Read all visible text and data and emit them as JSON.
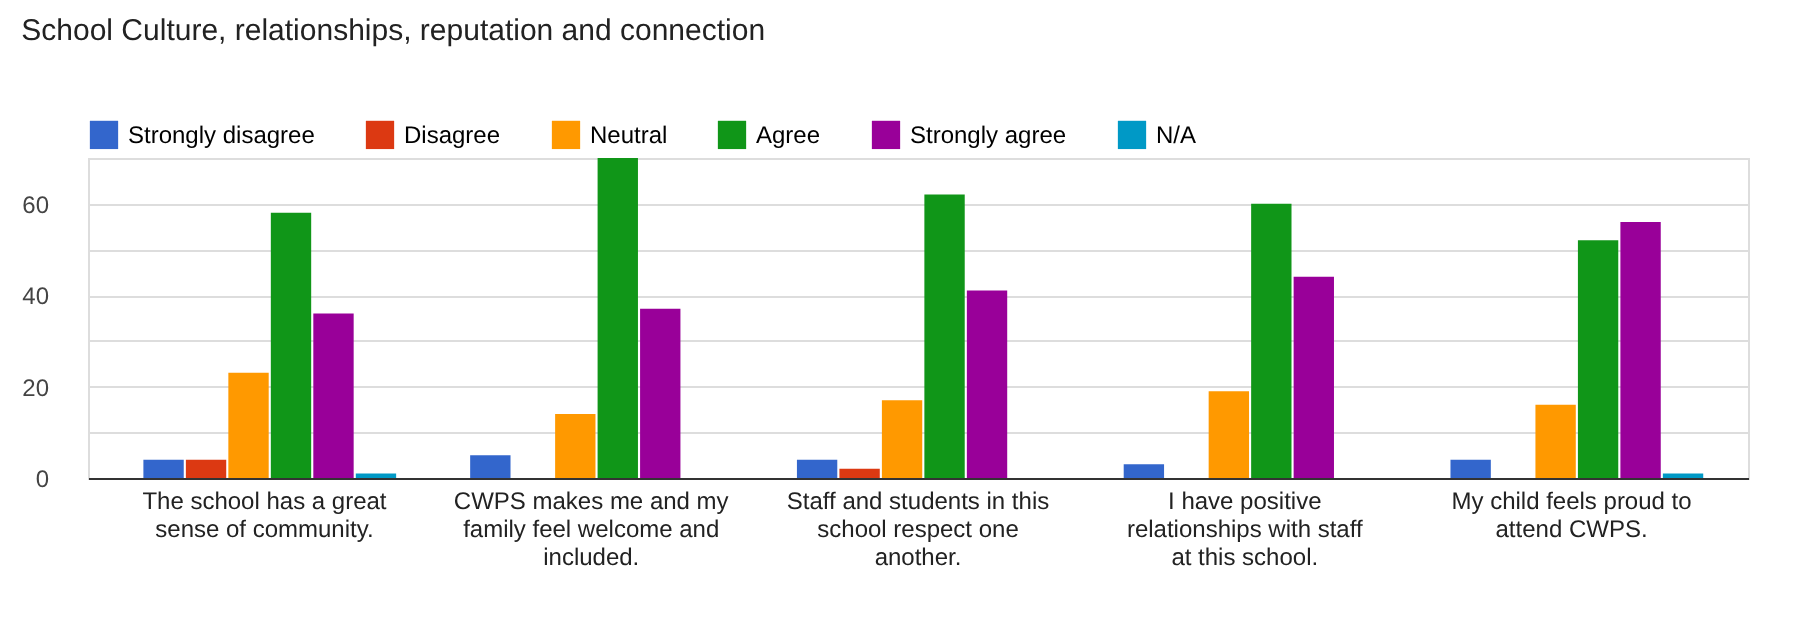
{
  "chart_data": {
    "type": "bar",
    "title": "School Culture, relationships, reputation and connection",
    "categories": [
      "The school has a great sense of community.",
      "CWPS makes me and my family feel welcome and included.",
      "Staff and students in this school respect one another.",
      "I have positive relationships with staff at this school.",
      "My child feels proud to attend CWPS."
    ],
    "series": [
      {
        "name": "Strongly disagree",
        "color": "#3366cc",
        "values": [
          4,
          5,
          4,
          3,
          4
        ]
      },
      {
        "name": "Disagree",
        "color": "#dc3912",
        "values": [
          4,
          0,
          2,
          0,
          0
        ]
      },
      {
        "name": "Neutral",
        "color": "#ff9900",
        "values": [
          23,
          14,
          17,
          19,
          16
        ]
      },
      {
        "name": "Agree",
        "color": "#109618",
        "values": [
          58,
          70,
          62,
          60,
          52
        ]
      },
      {
        "name": "Strongly agree",
        "color": "#990099",
        "values": [
          36,
          37,
          41,
          44,
          56
        ]
      },
      {
        "name": "N/A",
        "color": "#0099c6",
        "values": [
          1,
          0,
          0,
          0,
          1
        ]
      }
    ],
    "ylim": [
      0,
      70
    ],
    "yticks": [
      0,
      {
        "value": 10,
        "label": null
      },
      20,
      {
        "value": 30,
        "label": null
      },
      40,
      {
        "value": 50,
        "label": null
      },
      60
    ],
    "grid": true,
    "legend": "top left"
  }
}
